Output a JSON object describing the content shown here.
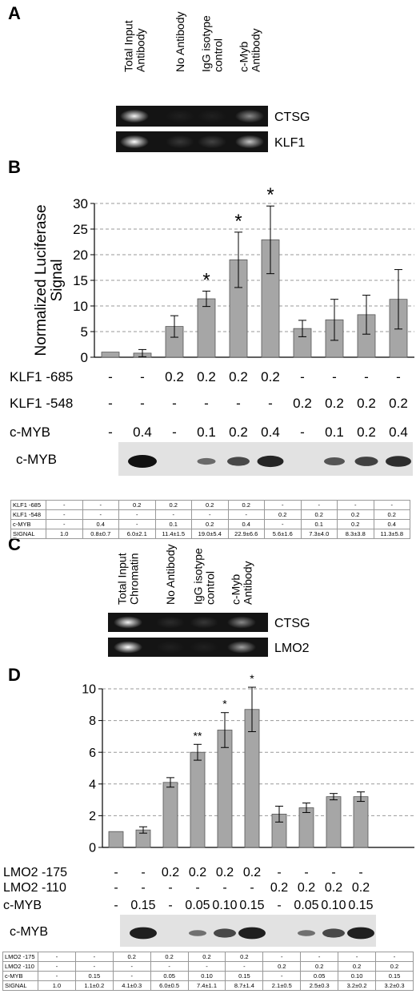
{
  "panel_letters": [
    "A",
    "B",
    "C",
    "D"
  ],
  "panel_a": {
    "lanes": [
      "Total Input Antibody",
      "No Antibody",
      "IgG isotype control",
      "c-Myb Antibody"
    ],
    "lanes_split": [
      [
        "Total Input",
        "Antibody"
      ],
      [
        "No Antibody"
      ],
      [
        "IgG isotype",
        "control"
      ],
      [
        "c-Myb",
        "Antibody"
      ]
    ],
    "genes": [
      "CTSG",
      "KLF1"
    ],
    "band_intensity": [
      [
        0.95,
        0.05,
        0.05,
        0.5
      ],
      [
        1.0,
        0.15,
        0.2,
        0.75
      ]
    ]
  },
  "panel_c": {
    "lanes": [
      "Total Input Chromatin",
      "No Antibody",
      "IgG isotype control",
      "c-Myb Antibody"
    ],
    "lanes_split": [
      [
        "Total Input",
        "Chromatin"
      ],
      [
        "No Antibody"
      ],
      [
        "IgG isotype",
        "control"
      ],
      [
        "c-Myb",
        "Antibody"
      ]
    ],
    "genes": [
      "CTSG",
      "LMO2"
    ],
    "band_intensity": [
      [
        0.95,
        0.1,
        0.15,
        0.5
      ],
      [
        1.0,
        0.05,
        0.05,
        0.6
      ]
    ]
  },
  "chart_data": [
    {
      "type": "bar",
      "ylabel": "Normalized Luciferase Signal",
      "ylabel_lines": [
        "Normalized Luciferase",
        "Signal"
      ],
      "ylim": [
        0,
        30
      ],
      "yticks": [
        0,
        5,
        10,
        15,
        20,
        25,
        30
      ],
      "grid": true,
      "color": "#a6a6a6",
      "values": [
        1.0,
        0.8,
        6.0,
        11.4,
        19.0,
        22.9,
        5.6,
        7.3,
        8.3,
        11.3
      ],
      "errors": [
        0,
        0.7,
        2.1,
        1.5,
        5.4,
        6.6,
        1.6,
        4.0,
        3.8,
        5.8
      ],
      "significance": [
        "",
        "",
        "",
        "*",
        "*",
        "*",
        "",
        "",
        "",
        ""
      ],
      "conditions": [
        {
          "label": "KLF1 -685",
          "values": [
            "-",
            "-",
            "0.2",
            "0.2",
            "0.2",
            "0.2",
            "-",
            "-",
            "-",
            "-"
          ]
        },
        {
          "label": "KLF1 -548",
          "values": [
            "-",
            "-",
            "-",
            "-",
            "-",
            "-",
            "0.2",
            "0.2",
            "0.2",
            "0.2"
          ]
        },
        {
          "label": "c-MYB",
          "values": [
            "-",
            "0.4",
            "-",
            "0.1",
            "0.2",
            "0.4",
            "-",
            "0.1",
            "0.2",
            "0.4"
          ]
        }
      ],
      "blot_label": "c-MYB",
      "blot_intensity": [
        0,
        1.0,
        0,
        0.35,
        0.6,
        0.85,
        0,
        0.5,
        0.65,
        0.8
      ],
      "table": {
        "rows": [
          {
            "label": "KLF1 -685",
            "cells": [
              "-",
              "-",
              "0.2",
              "0.2",
              "0.2",
              "0.2",
              "-",
              "-",
              "-",
              "-"
            ]
          },
          {
            "label": "KLF1 -548",
            "cells": [
              "-",
              "-",
              "-",
              "-",
              "-",
              "-",
              "0.2",
              "0.2",
              "0.2",
              "0.2"
            ]
          },
          {
            "label": "c-MYB",
            "cells": [
              "-",
              "0.4",
              "-",
              "0.1",
              "0.2",
              "0.4",
              "-",
              "0.1",
              "0.2",
              "0.4"
            ]
          },
          {
            "label": "SIGNAL",
            "cells": [
              "1.0",
              "0.8±0.7",
              "6.0±2.1",
              "11.4±1.5",
              "19.0±5.4",
              "22.9±6.6",
              "5.6±1.6",
              "7.3±4.0",
              "8.3±3.8",
              "11.3±5.8"
            ]
          }
        ]
      }
    },
    {
      "type": "bar",
      "ylabel": "",
      "ylim": [
        0,
        10
      ],
      "yticks": [
        0,
        2,
        4,
        6,
        8,
        10
      ],
      "grid": true,
      "color": "#a6a6a6",
      "values": [
        1.0,
        1.1,
        4.1,
        6.0,
        7.4,
        8.7,
        2.1,
        2.5,
        3.2,
        3.2
      ],
      "errors": [
        0,
        0.2,
        0.3,
        0.5,
        1.1,
        1.4,
        0.5,
        0.3,
        0.2,
        0.3
      ],
      "significance": [
        "",
        "",
        "",
        "**",
        "*",
        "*",
        "",
        "",
        "",
        ""
      ],
      "conditions": [
        {
          "label": "LMO2 -175",
          "values": [
            "-",
            "-",
            "0.2",
            "0.2",
            "0.2",
            "0.2",
            "-",
            "-",
            "-",
            "-"
          ]
        },
        {
          "label": "LMO2 -110",
          "values": [
            "-",
            "-",
            "-",
            "-",
            "-",
            "-",
            "0.2",
            "0.2",
            "0.2",
            "0.2"
          ]
        },
        {
          "label": "c-MYB",
          "values": [
            "-",
            "0.15",
            "-",
            "0.05",
            "0.10",
            "0.15",
            "-",
            "0.05",
            "0.10",
            "0.15"
          ]
        }
      ],
      "blot_label": "c-MYB",
      "blot_intensity": [
        0,
        0.9,
        0,
        0.3,
        0.6,
        0.9,
        0,
        0.3,
        0.6,
        0.9
      ],
      "table": {
        "rows": [
          {
            "label": "LMO2 -175",
            "cells": [
              "-",
              "-",
              "0.2",
              "0.2",
              "0.2",
              "0.2",
              "-",
              "-",
              "-",
              "-"
            ]
          },
          {
            "label": "LMO2 -110",
            "cells": [
              "-",
              "-",
              "-",
              "-",
              "-",
              "-",
              "0.2",
              "0.2",
              "0.2",
              "0.2"
            ]
          },
          {
            "label": "c-MYB",
            "cells": [
              "-",
              "0.15",
              "-",
              "0.05",
              "0.10",
              "0.15",
              "-",
              "0.05",
              "0.10",
              "0.15"
            ]
          },
          {
            "label": "SIGNAL",
            "cells": [
              "1.0",
              "1.1±0.2",
              "4.1±0.3",
              "6.0±0.5",
              "7.4±1.1",
              "8.7±1.4",
              "2.1±0.5",
              "2.5±0.3",
              "3.2±0.2",
              "3.2±0.3"
            ]
          }
        ]
      }
    }
  ]
}
